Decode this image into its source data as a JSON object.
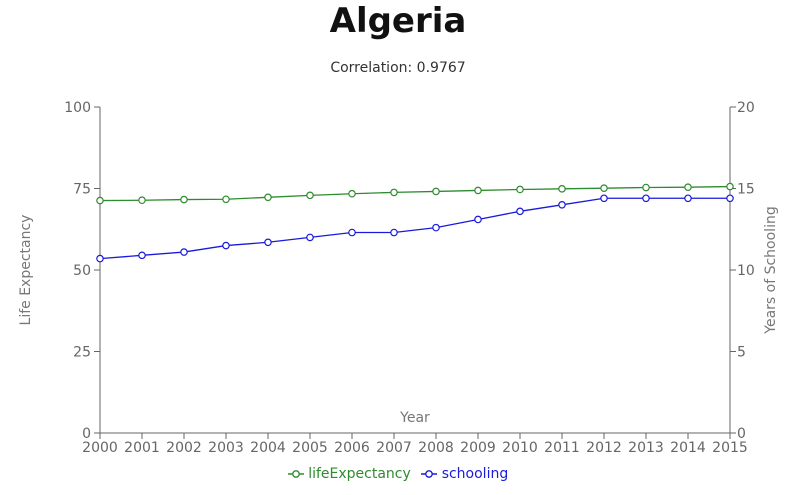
{
  "header": {
    "title": "Algeria",
    "subtitle": "Correlation: 0.9767"
  },
  "chart_data": {
    "type": "line",
    "title": "Algeria",
    "subtitle": "Correlation: 0.9767",
    "xlabel": "Year",
    "ylabel_left": "Life Expectancy",
    "ylabel_right": "Years of Schooling",
    "x": [
      2000,
      2001,
      2002,
      2003,
      2004,
      2005,
      2006,
      2007,
      2008,
      2009,
      2010,
      2011,
      2012,
      2013,
      2014,
      2015
    ],
    "ylim_left": [
      0,
      100
    ],
    "ylim_right": [
      0,
      20
    ],
    "yticks_left": [
      0,
      25,
      50,
      75,
      100
    ],
    "yticks_right": [
      0,
      5,
      10,
      15,
      20
    ],
    "grid": false,
    "legend_position": "bottom-center",
    "series": [
      {
        "name": "lifeExpectancy",
        "axis": "left",
        "color": "#2e8b2e",
        "values": [
          71.3,
          71.4,
          71.6,
          71.7,
          72.3,
          72.9,
          73.4,
          73.8,
          74.1,
          74.4,
          74.7,
          74.9,
          75.1,
          75.3,
          75.4,
          75.6
        ]
      },
      {
        "name": "schooling",
        "axis": "right",
        "color": "#1a1adb",
        "values": [
          10.7,
          10.9,
          11.1,
          11.5,
          11.7,
          12.0,
          12.3,
          12.3,
          12.6,
          13.1,
          13.6,
          14.0,
          14.4,
          14.4,
          14.4,
          14.4
        ]
      }
    ]
  }
}
